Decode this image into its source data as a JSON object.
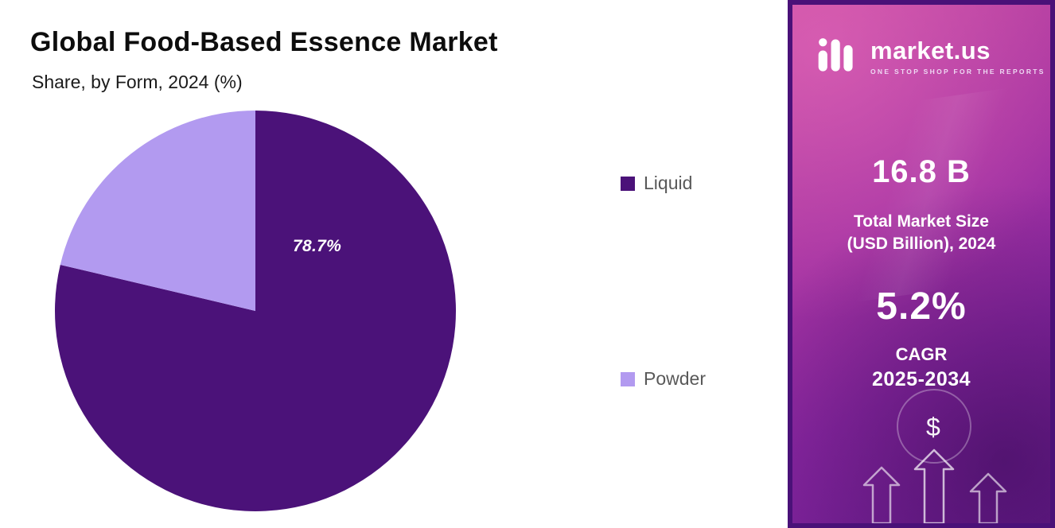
{
  "header": {
    "title": "Global Food-Based Essence Market",
    "subtitle": "Share, by Form, 2024 (%)"
  },
  "chart_data": {
    "type": "pie",
    "title": "Global Food-Based Essence Market",
    "subtitle": "Share, by Form, 2024 (%)",
    "categories": [
      "Liquid",
      "Powder"
    ],
    "values": [
      78.7,
      21.3
    ],
    "unit": "%",
    "colors": [
      "#4b1279",
      "#b29af0"
    ],
    "data_label": "78.7%",
    "start_angle": "top",
    "direction": "clockwise",
    "legend_position": "right"
  },
  "legend": {
    "items": [
      {
        "label": "Liquid",
        "color": "#4b1279"
      },
      {
        "label": "Powder",
        "color": "#b29af0"
      }
    ]
  },
  "panel": {
    "border_color": "#4a1178",
    "logo": {
      "brand": "market.us",
      "tagline": "ONE STOP SHOP FOR THE REPORTS",
      "icon": "pulse-bars-icon"
    },
    "stats": [
      {
        "value": "16.8 B",
        "label_line1": "Total Market Size",
        "label_line2": "(USD Billion), 2024"
      },
      {
        "value": "5.2%",
        "label_line1": "CAGR",
        "label_line2": "2025-2034"
      }
    ],
    "dollar_symbol": "$"
  }
}
